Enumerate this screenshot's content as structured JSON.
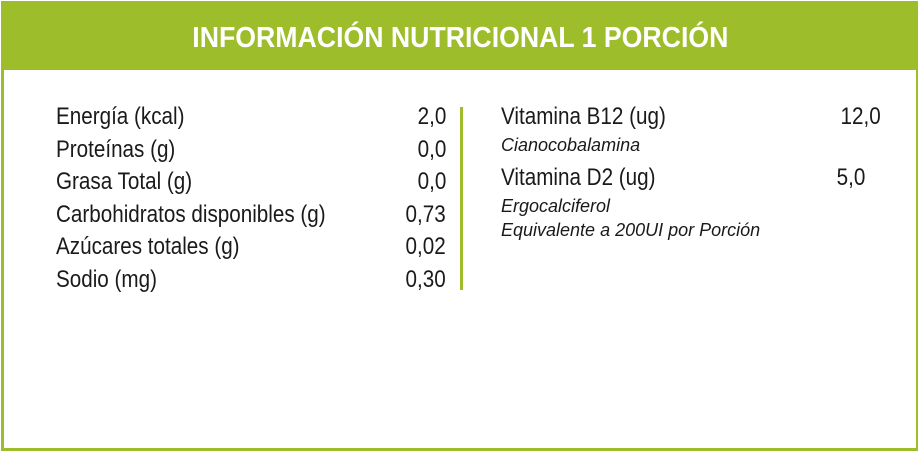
{
  "header": {
    "title": "INFORMACIÓN NUTRICIONAL 1 PORCIÓN"
  },
  "nutrients": [
    {
      "label": "Energía (kcal)",
      "value": "2,0"
    },
    {
      "label": "Proteínas (g)",
      "value": "0,0"
    },
    {
      "label": "Grasa Total (g)",
      "value": "0,0"
    },
    {
      "label": "Carbohidratos disponibles (g)",
      "value": "0,73"
    },
    {
      "label": "Azúcares totales (g)",
      "value": "0,02"
    },
    {
      "label": "Sodio (mg)",
      "value": "0,30"
    }
  ],
  "vitamins": {
    "b12": {
      "label": "Vitamina B12 (ug)",
      "value": "12,0",
      "note": "Cianocobalamina"
    },
    "d2": {
      "label": "Vitamina D2 (ug)",
      "value": "5,0",
      "note": "Ergocalciferol",
      "note2": "Equivalente a 200UI por Porción"
    }
  },
  "colors": {
    "accent": "#9ebd2a",
    "text": "#1a1a1a",
    "header_text": "#ffffff"
  }
}
